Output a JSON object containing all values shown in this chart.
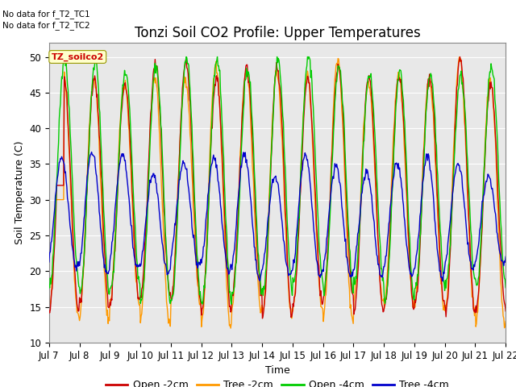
{
  "title": "Tonzi Soil CO2 Profile: Upper Temperatures",
  "xlabel": "Time",
  "ylabel": "Soil Temperature (C)",
  "ylim": [
    10,
    52
  ],
  "yticks": [
    10,
    15,
    20,
    25,
    30,
    35,
    40,
    45,
    50
  ],
  "fig_bg_color": "#ffffff",
  "plot_bg_color": "#e8e8e8",
  "no_data_text1": "No data for f_T2_TC1",
  "no_data_text2": "No data for f_T2_TC2",
  "dataset_label": "TZ_soilco2",
  "legend_entries": [
    "Open -2cm",
    "Tree -2cm",
    "Open -4cm",
    "Tree -4cm"
  ],
  "legend_colors": [
    "#cc0000",
    "#ff9900",
    "#00cc00",
    "#0000cc"
  ],
  "line_width": 1.0,
  "xtick_labels": [
    "Jul 7",
    "Jul 8",
    "Jul 9",
    "Jul 10",
    "Jul 11",
    "Jul 12",
    "Jul 13",
    "Jul 14",
    "Jul 15",
    "Jul 16",
    "Jul 17",
    "Jul 18",
    "Jul 19",
    "Jul 20",
    "Jul 21",
    "Jul 22"
  ],
  "title_fontsize": 12,
  "label_fontsize": 9,
  "tick_fontsize": 8.5
}
